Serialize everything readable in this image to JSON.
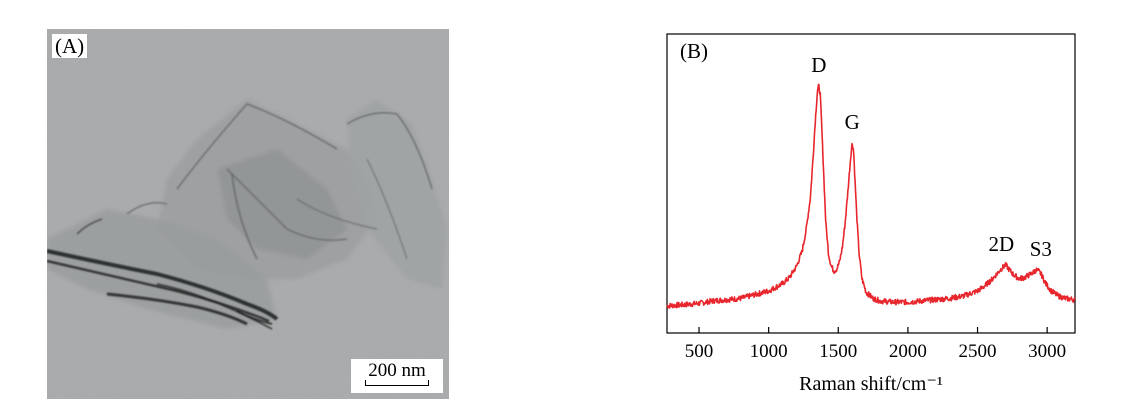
{
  "panel_a": {
    "label": "(A)",
    "scale_bar": "200 nm"
  },
  "chart_data": {
    "type": "line",
    "panel_label": "(B)",
    "title": "",
    "xlabel": "Raman shift/cm⁻¹",
    "ylabel": "",
    "xlim": [
      270,
      3200
    ],
    "ylim": [
      0,
      1.0
    ],
    "xticks": [
      "500",
      "1000",
      "1500",
      "2000",
      "2500",
      "3000"
    ],
    "grid": false,
    "series": [
      {
        "color": "#e8262d",
        "x": [
          270,
          400,
          500,
          600,
          700,
          800,
          900,
          1000,
          1050,
          1100,
          1150,
          1200,
          1240,
          1270,
          1300,
          1320,
          1335,
          1350,
          1360,
          1370,
          1380,
          1395,
          1410,
          1430,
          1450,
          1470,
          1490,
          1510,
          1530,
          1550,
          1570,
          1590,
          1600,
          1610,
          1620,
          1635,
          1650,
          1670,
          1700,
          1750,
          1800,
          1900,
          2000,
          2100,
          2200,
          2300,
          2400,
          2500,
          2550,
          2600,
          2640,
          2670,
          2690,
          2700,
          2710,
          2730,
          2760,
          2800,
          2840,
          2870,
          2900,
          2920,
          2940,
          2960,
          2990,
          3030,
          3080,
          3130,
          3200
        ],
        "y": [
          0.11,
          0.115,
          0.12,
          0.13,
          0.135,
          0.14,
          0.155,
          0.17,
          0.185,
          0.2,
          0.225,
          0.27,
          0.33,
          0.42,
          0.55,
          0.72,
          0.86,
          0.98,
          1.0,
          0.97,
          0.85,
          0.65,
          0.45,
          0.32,
          0.27,
          0.25,
          0.26,
          0.29,
          0.35,
          0.45,
          0.58,
          0.72,
          0.77,
          0.74,
          0.62,
          0.45,
          0.32,
          0.22,
          0.165,
          0.14,
          0.13,
          0.125,
          0.125,
          0.13,
          0.135,
          0.14,
          0.15,
          0.17,
          0.19,
          0.215,
          0.24,
          0.26,
          0.27,
          0.275,
          0.27,
          0.255,
          0.235,
          0.22,
          0.225,
          0.235,
          0.245,
          0.255,
          0.25,
          0.235,
          0.2,
          0.17,
          0.15,
          0.14,
          0.135
        ]
      }
    ],
    "annotations": [
      {
        "text": "D",
        "x": 1360,
        "y": 1.0
      },
      {
        "text": "G",
        "x": 1600,
        "y": 0.77
      },
      {
        "text": "2D",
        "x": 2700,
        "y": 0.275
      },
      {
        "text": "S3",
        "x": 2940,
        "y": 0.255
      }
    ]
  }
}
